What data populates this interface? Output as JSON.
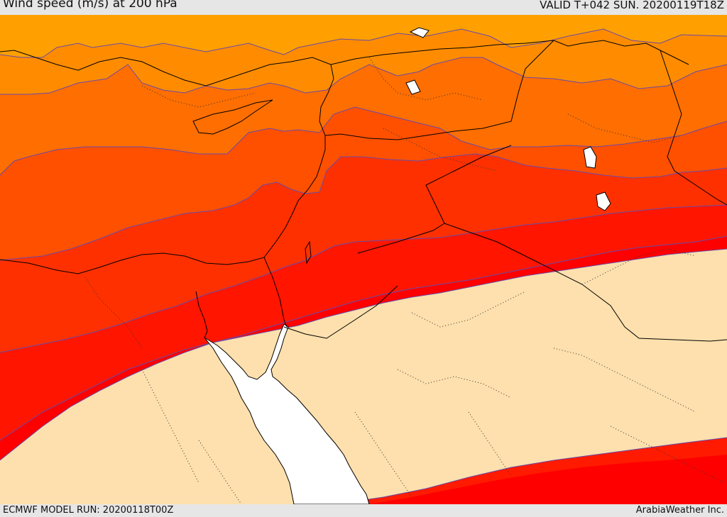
{
  "header": {
    "title": "Wind speed (m/s) at 200 hPa",
    "valid": "VALID T+042 SUN. 20200119T18Z"
  },
  "footer": {
    "model_run": "ECMWF MODEL RUN: 20200118T00Z",
    "credit": "ArabiaWeather Inc."
  },
  "colors": {
    "band_1": "#ffc800",
    "band_2": "#ffa000",
    "band_3": "#ff8c00",
    "band_4": "#ff6e00",
    "band_5": "#ff5000",
    "band_6": "#ff3000",
    "band_7": "#ff1500",
    "band_8": "#ff0000",
    "land_below_threshold": "#fde0ad",
    "sea": "#ffffff",
    "contour": "#6a4aa8"
  }
}
